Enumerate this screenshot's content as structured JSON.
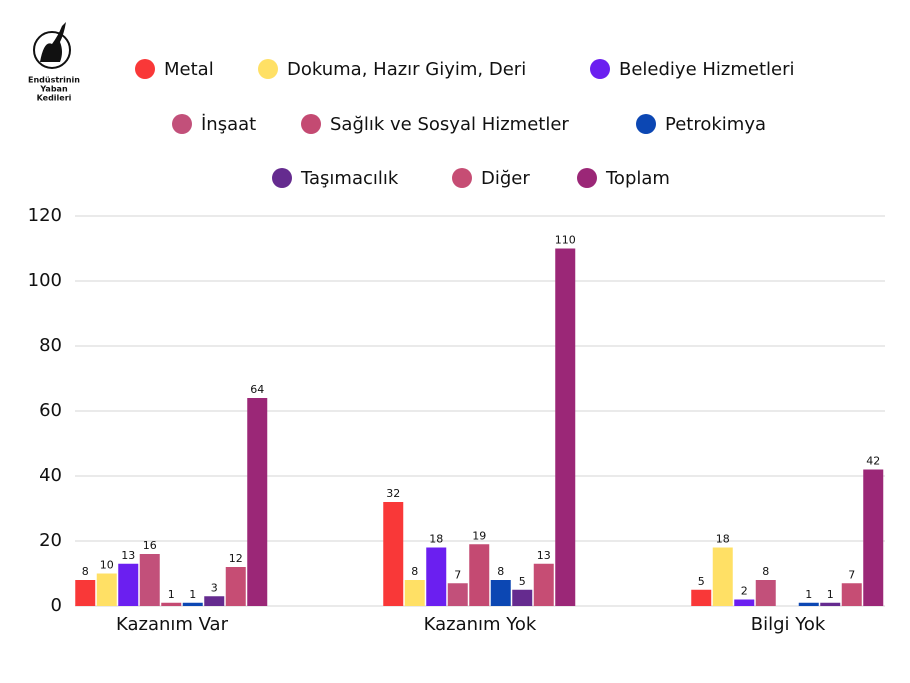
{
  "logo": [
    "Endüstrinin",
    "Yaban",
    "Kedileri"
  ],
  "chart_data": {
    "type": "bar",
    "categories": [
      "Kazanım Var",
      "Kazanım Yok",
      "Bilgi Yok"
    ],
    "series": [
      {
        "name": "Metal",
        "color": "#f93838",
        "values": [
          8,
          32,
          5
        ]
      },
      {
        "name": "Dokuma, Hazır Giyim, Deri",
        "color": "#ffe065",
        "values": [
          10,
          8,
          18
        ]
      },
      {
        "name": "Belediye Hizmetleri",
        "color": "#6b1ff0",
        "values": [
          13,
          18,
          2
        ]
      },
      {
        "name": "İnşaat",
        "color": "#c2507a",
        "values": [
          16,
          7,
          8
        ]
      },
      {
        "name": "Sağlık ve Sosyal Hizmetler",
        "color": "#c44a72",
        "values": [
          1,
          19,
          null
        ]
      },
      {
        "name": "Petrokimya",
        "color": "#0c47b3",
        "values": [
          1,
          8,
          1
        ]
      },
      {
        "name": "Taşımacılık",
        "color": "#652b8f",
        "values": [
          3,
          5,
          1
        ]
      },
      {
        "name": "Diğer",
        "color": "#c64d74",
        "values": [
          12,
          13,
          7
        ]
      },
      {
        "name": "Toplam",
        "color": "#9b2777",
        "values": [
          64,
          110,
          42
        ]
      }
    ],
    "ylim": [
      0,
      120
    ],
    "yticks": [
      0,
      20,
      40,
      60,
      80,
      100,
      120
    ],
    "grid": true
  }
}
